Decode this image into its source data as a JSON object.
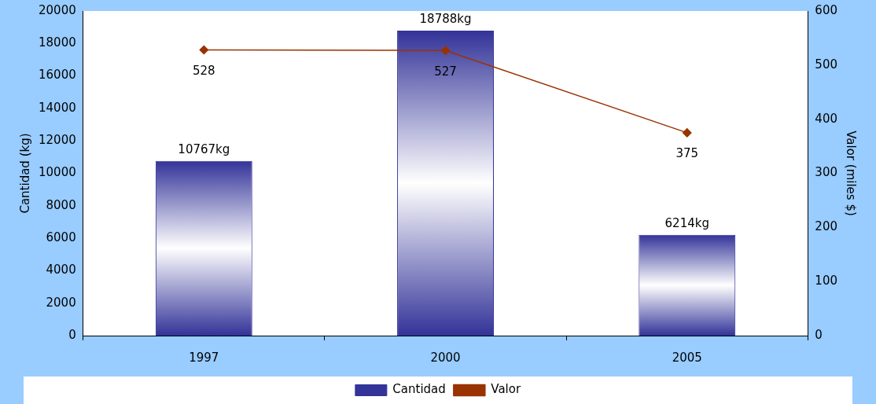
{
  "chart_data": {
    "type": "bar",
    "categories": [
      "1997",
      "2000",
      "2005"
    ],
    "ylabel": "Cantidad (kg)",
    "y2label": "Valor (miles $)",
    "ylim": [
      0,
      20000
    ],
    "yticks": [
      0,
      2000,
      4000,
      6000,
      8000,
      10000,
      12000,
      14000,
      16000,
      18000,
      20000
    ],
    "y2lim": [
      0,
      600
    ],
    "y2ticks": [
      0,
      100,
      200,
      300,
      400,
      500,
      600
    ],
    "series": [
      {
        "name": "Cantidad",
        "color": "#333399",
        "values": [
          10767,
          18788,
          6214
        ],
        "value_labels": [
          "10767kg",
          "18788kg",
          "6214kg"
        ]
      },
      {
        "name": "Valor",
        "type": "line",
        "axis": "y2",
        "color": "#993300",
        "values": [
          528,
          527,
          375
        ],
        "value_labels": [
          "528",
          "527",
          "375"
        ]
      }
    ],
    "marker": "diamond",
    "legend": "bottom",
    "grid": false
  }
}
